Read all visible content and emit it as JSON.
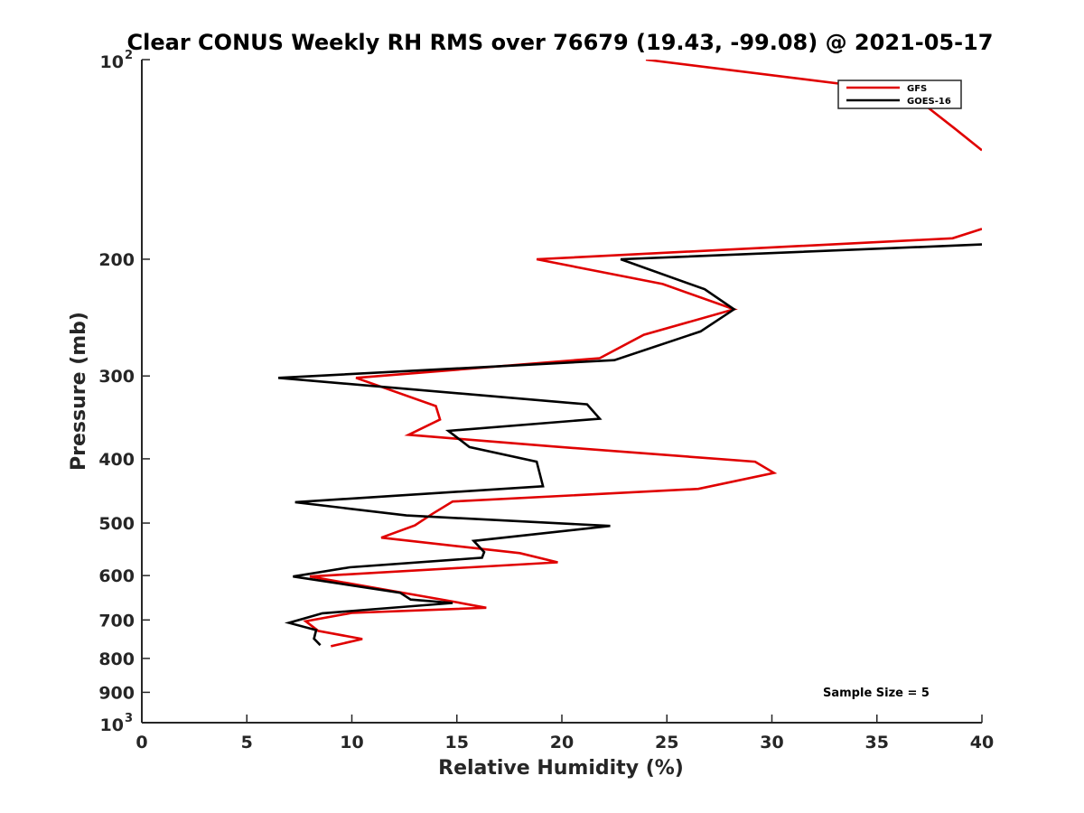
{
  "chart_data": {
    "type": "line",
    "title": "Clear CONUS Weekly RH RMS over 76679 (19.43, -99.08) @ 2021-05-17",
    "xlabel": "Relative Humidity (%)",
    "ylabel": "Pressure (mb)",
    "xlim": [
      0,
      40
    ],
    "ylim": [
      100,
      1000
    ],
    "yscale": "log",
    "y_reversed": true,
    "grid": false,
    "legend_position": "top-right",
    "x_ticks": [
      "0",
      "5",
      "10",
      "15",
      "20",
      "25",
      "30",
      "35",
      "40"
    ],
    "y_ticks": [
      {
        "value": 100,
        "base": "10",
        "exp": "2"
      },
      {
        "value": 200,
        "label": "200"
      },
      {
        "value": 300,
        "label": "300"
      },
      {
        "value": 400,
        "label": "400"
      },
      {
        "value": 500,
        "label": "500"
      },
      {
        "value": 600,
        "label": "600"
      },
      {
        "value": 700,
        "label": "700"
      },
      {
        "value": 800,
        "label": "800"
      },
      {
        "value": 900,
        "label": "900"
      },
      {
        "value": 1000,
        "base": "10",
        "exp": "3"
      }
    ],
    "annotation": "Sample Size = 5",
    "series": [
      {
        "name": "GFS",
        "color": "#e00000",
        "points": [
          [
            24.0,
            100
          ],
          [
            36.5,
            112
          ],
          [
            38.7,
            127
          ],
          [
            40.0,
            137
          ],
          [
            null,
            null
          ],
          [
            40.0,
            180
          ],
          [
            38.6,
            186
          ],
          [
            18.8,
            200
          ],
          [
            24.8,
            218
          ],
          [
            28.2,
            238
          ],
          [
            23.9,
            260
          ],
          [
            21.8,
            282
          ],
          [
            10.2,
            302
          ],
          [
            14.0,
            333
          ],
          [
            14.2,
            349
          ],
          [
            12.7,
            368
          ],
          [
            19.5,
            383
          ],
          [
            29.2,
            404
          ],
          [
            30.1,
            420
          ],
          [
            26.5,
            444
          ],
          [
            14.8,
            464
          ],
          [
            13.8,
            485
          ],
          [
            13.0,
            504
          ],
          [
            11.4,
            526
          ],
          [
            18.0,
            555
          ],
          [
            19.8,
            573
          ],
          [
            8.0,
            602
          ],
          [
            14.5,
            654
          ],
          [
            16.4,
            671
          ],
          [
            10.0,
            683
          ],
          [
            7.8,
            703
          ],
          [
            8.4,
            727
          ],
          [
            10.5,
            748
          ],
          [
            9.0,
            767
          ]
        ]
      },
      {
        "name": "GOES-16",
        "color": "#000000",
        "points": [
          [
            40.0,
            190
          ],
          [
            22.8,
            200
          ],
          [
            26.8,
            222
          ],
          [
            28.2,
            238
          ],
          [
            26.6,
            257
          ],
          [
            22.5,
            284
          ],
          [
            6.5,
            302
          ],
          [
            21.2,
            331
          ],
          [
            21.8,
            348
          ],
          [
            14.6,
            363
          ],
          [
            15.6,
            384
          ],
          [
            18.8,
            404
          ],
          [
            19.1,
            440
          ],
          [
            7.3,
            465
          ],
          [
            12.6,
            487
          ],
          [
            22.3,
            505
          ],
          [
            15.8,
            532
          ],
          [
            16.3,
            553
          ],
          [
            16.2,
            564
          ],
          [
            9.9,
            583
          ],
          [
            7.2,
            602
          ],
          [
            12.3,
            637
          ],
          [
            12.8,
            652
          ],
          [
            14.8,
            660
          ],
          [
            8.6,
            684
          ],
          [
            7.0,
            707
          ],
          [
            8.3,
            725
          ],
          [
            8.2,
            747
          ],
          [
            8.5,
            764
          ]
        ]
      }
    ]
  }
}
